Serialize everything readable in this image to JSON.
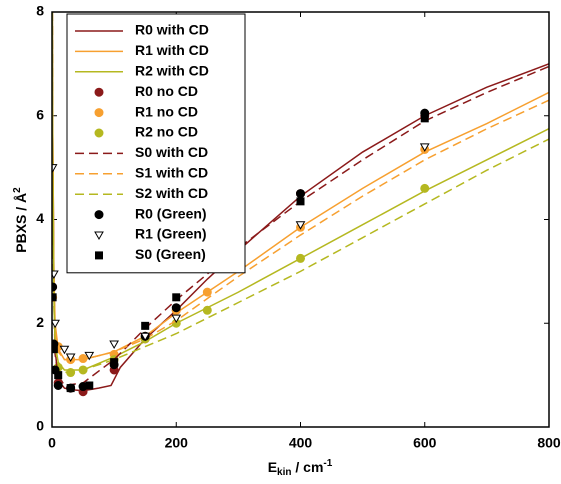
{
  "chart_data": {
    "type": "line-scatter",
    "xlabel": {
      "main": "E",
      "sub": "kin",
      "unit": " / cm",
      "sup": "-1"
    },
    "ylabel": {
      "main": "PBXS / Å",
      "sup": "2"
    },
    "xlim": [
      0,
      800
    ],
    "ylim": [
      0,
      8
    ],
    "xticks": [
      0,
      200,
      400,
      600,
      800
    ],
    "yticks": [
      0,
      2,
      4,
      6,
      8
    ],
    "legend": "upper-left",
    "series": [
      {
        "name": "R0 with CD",
        "color": "#8b1a1a",
        "style": "solid",
        "x": [
          0.5,
          1,
          3,
          5,
          10,
          20,
          30,
          50,
          75,
          95,
          110,
          150,
          200,
          250,
          300,
          400,
          500,
          600,
          700,
          800
        ],
        "values": [
          8,
          6,
          3,
          1.5,
          0.9,
          0.75,
          0.72,
          0.7,
          0.75,
          0.8,
          1.15,
          1.7,
          2.25,
          2.85,
          3.4,
          4.45,
          5.3,
          6.0,
          6.55,
          7.0
        ]
      },
      {
        "name": "R1 with CD",
        "color": "#f7a030",
        "style": "solid",
        "x": [
          0.5,
          1,
          3,
          5,
          10,
          20,
          50,
          100,
          150,
          200,
          300,
          400,
          500,
          600,
          700,
          800
        ],
        "values": [
          8,
          6,
          3,
          2,
          1.5,
          1.3,
          1.3,
          1.45,
          1.75,
          2.2,
          3.0,
          3.85,
          4.6,
          5.3,
          5.85,
          6.45
        ]
      },
      {
        "name": "R2 with CD",
        "color": "#b5b820",
        "style": "solid",
        "x": [
          0.5,
          1,
          3,
          5,
          10,
          20,
          50,
          100,
          150,
          200,
          300,
          400,
          500,
          600,
          700,
          800
        ],
        "values": [
          8,
          5.5,
          2.5,
          1.6,
          1.25,
          1.1,
          1.1,
          1.35,
          1.65,
          2.0,
          2.6,
          3.25,
          3.9,
          4.55,
          5.15,
          5.75
        ]
      },
      {
        "name": "R0 no CD",
        "color": "#8b1a1a",
        "style": "marker",
        "marker": "circle",
        "filled": true,
        "x": [
          1,
          10,
          30,
          50,
          100,
          150,
          200,
          300,
          400,
          600
        ],
        "values": [
          2.7,
          0.85,
          0.75,
          0.68,
          1.1,
          1.7,
          2.25,
          3.45,
          4.5,
          6.0
        ]
      },
      {
        "name": "R1 no CD",
        "color": "#f7a030",
        "style": "marker",
        "marker": "circle",
        "filled": true,
        "x": [
          1,
          10,
          30,
          50,
          100,
          150,
          200,
          250,
          300,
          400,
          600
        ],
        "values": [
          2.5,
          1.55,
          1.3,
          1.32,
          1.4,
          1.75,
          2.25,
          2.6,
          3.05,
          3.85,
          5.35
        ]
      },
      {
        "name": "R2 no CD",
        "color": "#b5b820",
        "style": "marker",
        "marker": "circle",
        "filled": true,
        "x": [
          10,
          30,
          50,
          100,
          150,
          200,
          250,
          400,
          600
        ],
        "values": [
          1.15,
          1.05,
          1.1,
          1.3,
          1.7,
          2.0,
          2.25,
          3.25,
          4.6
        ]
      },
      {
        "name": "S0 with CD",
        "color": "#8b1a1a",
        "style": "dashed",
        "x": [
          0.5,
          1,
          3,
          5,
          10,
          20,
          50,
          100,
          150,
          200,
          300,
          400,
          500,
          600,
          700,
          800
        ],
        "values": [
          8,
          5,
          2.5,
          1.4,
          1.0,
          0.8,
          0.85,
          1.3,
          1.9,
          2.45,
          3.45,
          4.35,
          5.15,
          5.9,
          6.45,
          6.95
        ]
      },
      {
        "name": "S1 with CD",
        "color": "#f7a030",
        "style": "dashed",
        "x": [
          0.5,
          1,
          3,
          5,
          10,
          20,
          50,
          100,
          150,
          200,
          300,
          400,
          500,
          600,
          700,
          800
        ],
        "values": [
          8,
          5.5,
          2.8,
          1.9,
          1.45,
          1.3,
          1.3,
          1.45,
          1.7,
          2.05,
          2.9,
          3.7,
          4.45,
          5.15,
          5.75,
          6.3
        ]
      },
      {
        "name": "S2 with CD",
        "color": "#b5b820",
        "style": "dashed",
        "x": [
          0.5,
          1,
          3,
          5,
          10,
          20,
          50,
          100,
          150,
          200,
          300,
          400,
          500,
          600,
          700,
          800
        ],
        "values": [
          8,
          5,
          2.4,
          1.55,
          1.2,
          1.05,
          1.1,
          1.3,
          1.55,
          1.8,
          2.4,
          3.0,
          3.65,
          4.3,
          4.95,
          5.55
        ]
      },
      {
        "name": "R0 (Green)",
        "color": "#000000",
        "style": "marker",
        "marker": "circle",
        "filled": true,
        "x": [
          1,
          3,
          5,
          10,
          30,
          50,
          100,
          150,
          200,
          400,
          600
        ],
        "values": [
          2.7,
          1.6,
          1.1,
          0.8,
          0.75,
          0.78,
          1.2,
          1.75,
          2.3,
          4.5,
          6.05
        ]
      },
      {
        "name": "R1 (Green)",
        "color": "#000000",
        "style": "marker",
        "marker": "triangle-down",
        "filled": false,
        "x": [
          1,
          3,
          5,
          20,
          30,
          60,
          100,
          150,
          200,
          400,
          600
        ],
        "values": [
          5.0,
          2.95,
          2.0,
          1.5,
          1.35,
          1.38,
          1.6,
          1.75,
          2.1,
          3.9,
          5.4
        ]
      },
      {
        "name": "S0 (Green)",
        "color": "#000000",
        "style": "marker",
        "marker": "square",
        "filled": true,
        "x": [
          1,
          3,
          10,
          30,
          60,
          100,
          150,
          200,
          400,
          600
        ],
        "values": [
          2.5,
          1.5,
          1.0,
          0.75,
          0.8,
          1.25,
          1.95,
          2.5,
          4.35,
          5.95
        ]
      }
    ]
  }
}
